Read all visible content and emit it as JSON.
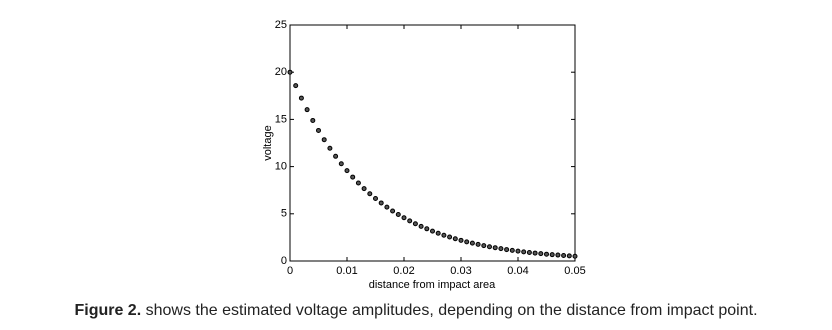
{
  "chart_data": {
    "type": "scatter",
    "ylabel": "voltage",
    "xlabel": "distance from impact area",
    "x": [
      0,
      0.001,
      0.002,
      0.003,
      0.004,
      0.005,
      0.006,
      0.007,
      0.008,
      0.009,
      0.01,
      0.011,
      0.012,
      0.013,
      0.014,
      0.015,
      0.016,
      0.017,
      0.018,
      0.019,
      0.02,
      0.021,
      0.022,
      0.023,
      0.024,
      0.025,
      0.026,
      0.027,
      0.028,
      0.029,
      0.03,
      0.031,
      0.032,
      0.033,
      0.034,
      0.035,
      0.036,
      0.037,
      0.038,
      0.039,
      0.04,
      0.041,
      0.042,
      0.043,
      0.044,
      0.045,
      0.046,
      0.047,
      0.048,
      0.049,
      0.05
    ],
    "values": [
      20,
      18.58,
      17.26,
      16.03,
      14.89,
      13.83,
      12.85,
      11.94,
      11.09,
      10.3,
      9.57,
      8.89,
      8.26,
      7.67,
      7.12,
      6.62,
      6.15,
      5.71,
      5.3,
      4.93,
      4.58,
      4.25,
      3.95,
      3.67,
      3.41,
      3.16,
      2.94,
      2.73,
      2.54,
      2.36,
      2.19,
      2.03,
      1.89,
      1.76,
      1.63,
      1.51,
      1.41,
      1.31,
      1.21,
      1.13,
      1.05,
      0.97,
      0.9,
      0.84,
      0.78,
      0.72,
      0.67,
      0.63,
      0.58,
      0.54,
      0.5
    ],
    "color": "#000000",
    "xlim": [
      0,
      0.05
    ],
    "xticks": [
      0,
      0.01,
      0.02,
      0.03,
      0.04,
      0.05
    ],
    "ylim": [
      0,
      25
    ],
    "yticks": [
      0,
      5,
      10,
      15,
      20,
      25
    ]
  },
  "caption": {
    "label": "Figure 2.",
    "text": "shows the estimated voltage amplitudes, depending on the distance from impact point."
  }
}
